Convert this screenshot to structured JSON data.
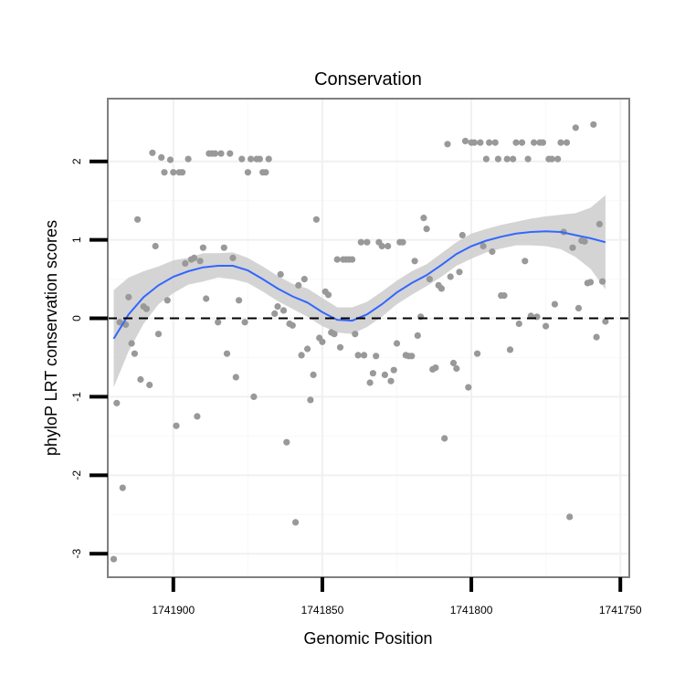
{
  "chart_data": {
    "type": "scatter",
    "title": "Conservation",
    "xlabel": "Genomic Position",
    "ylabel": "phyloP LRT conservation scores",
    "x_reversed": true,
    "xlim": [
      1741922,
      1741747
    ],
    "ylim": [
      -3.3,
      2.8
    ],
    "x_ticks": [
      1741900,
      1741850,
      1741800,
      1741750
    ],
    "y_ticks": [
      -3,
      -2,
      -1,
      0,
      1,
      2
    ],
    "x_tick_labels": [
      "1741900",
      "1741850",
      "1741800",
      "1741750"
    ],
    "y_tick_labels": [
      "-3",
      "-2",
      "-1",
      "0",
      "1",
      "2"
    ],
    "reference_line": {
      "y": 0,
      "style": "dashed",
      "color": "#000000"
    },
    "colors": {
      "points": "#999999",
      "smooth": "#3366FF",
      "ribbon": "#CCCCCC",
      "panel_border": "#7F7F7F",
      "grid_major": "#F0F0F0",
      "grid_minor": "#F8F8F8"
    },
    "points": [
      {
        "x": 1741920.0,
        "y": -3.07
      },
      {
        "x": 1741919.0,
        "y": -1.08
      },
      {
        "x": 1741918.0,
        "y": -0.05
      },
      {
        "x": 1741917.0,
        "y": -2.16
      },
      {
        "x": 1741916.0,
        "y": -0.08
      },
      {
        "x": 1741915.0,
        "y": 0.27
      },
      {
        "x": 1741914.0,
        "y": -0.32
      },
      {
        "x": 1741913.0,
        "y": -0.45
      },
      {
        "x": 1741912.0,
        "y": 1.26
      },
      {
        "x": 1741911.0,
        "y": -0.78
      },
      {
        "x": 1741910.0,
        "y": 0.15
      },
      {
        "x": 1741909.0,
        "y": 0.12
      },
      {
        "x": 1741908.0,
        "y": -0.85
      },
      {
        "x": 1741907.0,
        "y": 2.11
      },
      {
        "x": 1741906.0,
        "y": 0.92
      },
      {
        "x": 1741905.0,
        "y": -0.2
      },
      {
        "x": 1741904.0,
        "y": 2.05
      },
      {
        "x": 1741903.0,
        "y": 1.86
      },
      {
        "x": 1741902.0,
        "y": 0.23
      },
      {
        "x": 1741901.0,
        "y": 2.02
      },
      {
        "x": 1741900.0,
        "y": 1.86
      },
      {
        "x": 1741899.0,
        "y": -1.37
      },
      {
        "x": 1741898.0,
        "y": 1.86
      },
      {
        "x": 1741897.0,
        "y": 1.86
      },
      {
        "x": 1741896.0,
        "y": 0.7
      },
      {
        "x": 1741895.0,
        "y": 2.03
      },
      {
        "x": 1741894.0,
        "y": 0.75
      },
      {
        "x": 1741893.0,
        "y": 0.77
      },
      {
        "x": 1741892.0,
        "y": -1.25
      },
      {
        "x": 1741891.0,
        "y": 0.73
      },
      {
        "x": 1741890.0,
        "y": 0.9
      },
      {
        "x": 1741889.0,
        "y": 0.25
      },
      {
        "x": 1741888.0,
        "y": 2.1
      },
      {
        "x": 1741887.0,
        "y": 2.1
      },
      {
        "x": 1741886.0,
        "y": 2.1
      },
      {
        "x": 1741885.0,
        "y": -0.05
      },
      {
        "x": 1741884.0,
        "y": 2.1
      },
      {
        "x": 1741883.0,
        "y": 0.9
      },
      {
        "x": 1741882.0,
        "y": -0.45
      },
      {
        "x": 1741881.0,
        "y": 2.1
      },
      {
        "x": 1741880.0,
        "y": 0.77
      },
      {
        "x": 1741879.0,
        "y": -0.75
      },
      {
        "x": 1741878.0,
        "y": 0.23
      },
      {
        "x": 1741877.0,
        "y": 2.03
      },
      {
        "x": 1741876.0,
        "y": -0.05
      },
      {
        "x": 1741875.0,
        "y": 1.86
      },
      {
        "x": 1741874.0,
        "y": 2.03
      },
      {
        "x": 1741873.0,
        "y": -1.0
      },
      {
        "x": 1741872.0,
        "y": 2.03
      },
      {
        "x": 1741871.0,
        "y": 2.03
      },
      {
        "x": 1741870.0,
        "y": 1.86
      },
      {
        "x": 1741869.0,
        "y": 1.86
      },
      {
        "x": 1741868.0,
        "y": 2.03
      },
      {
        "x": 1741866.0,
        "y": 0.06
      },
      {
        "x": 1741865.0,
        "y": 0.15
      },
      {
        "x": 1741864.0,
        "y": 0.56
      },
      {
        "x": 1741863.0,
        "y": 0.1
      },
      {
        "x": 1741862.0,
        "y": -1.58
      },
      {
        "x": 1741861.0,
        "y": -0.07
      },
      {
        "x": 1741860.0,
        "y": -0.09
      },
      {
        "x": 1741859.0,
        "y": -2.6
      },
      {
        "x": 1741858.0,
        "y": 0.42
      },
      {
        "x": 1741857.0,
        "y": -0.47
      },
      {
        "x": 1741856.0,
        "y": 0.5
      },
      {
        "x": 1741855.0,
        "y": -0.39
      },
      {
        "x": 1741854.0,
        "y": -1.04
      },
      {
        "x": 1741853.0,
        "y": -0.72
      },
      {
        "x": 1741852.0,
        "y": 1.26
      },
      {
        "x": 1741851.0,
        "y": -0.25
      },
      {
        "x": 1741850.0,
        "y": -0.3
      },
      {
        "x": 1741849.0,
        "y": 0.34
      },
      {
        "x": 1741848.0,
        "y": 0.3
      },
      {
        "x": 1741847.0,
        "y": -0.18
      },
      {
        "x": 1741846.0,
        "y": -0.2
      },
      {
        "x": 1741845.0,
        "y": 0.75
      },
      {
        "x": 1741844.0,
        "y": -0.37
      },
      {
        "x": 1741843.0,
        "y": 0.75
      },
      {
        "x": 1741842.0,
        "y": 0.75
      },
      {
        "x": 1741841.0,
        "y": 0.75
      },
      {
        "x": 1741840.0,
        "y": 0.75
      },
      {
        "x": 1741839.0,
        "y": -0.2
      },
      {
        "x": 1741838.0,
        "y": -0.47
      },
      {
        "x": 1741837.0,
        "y": 0.97
      },
      {
        "x": 1741836.0,
        "y": -0.47
      },
      {
        "x": 1741835.0,
        "y": 0.97
      },
      {
        "x": 1741834.0,
        "y": -0.82
      },
      {
        "x": 1741833.0,
        "y": -0.7
      },
      {
        "x": 1741832.0,
        "y": -0.48
      },
      {
        "x": 1741831.0,
        "y": 0.97
      },
      {
        "x": 1741830.0,
        "y": 0.92
      },
      {
        "x": 1741829.0,
        "y": -0.72
      },
      {
        "x": 1741828.0,
        "y": 0.92
      },
      {
        "x": 1741827.0,
        "y": -0.8
      },
      {
        "x": 1741826.0,
        "y": -0.66
      },
      {
        "x": 1741825.0,
        "y": -0.32
      },
      {
        "x": 1741824.0,
        "y": 0.97
      },
      {
        "x": 1741823.0,
        "y": 0.97
      },
      {
        "x": 1741822.0,
        "y": -0.47
      },
      {
        "x": 1741821.0,
        "y": -0.48
      },
      {
        "x": 1741820.0,
        "y": -0.48
      },
      {
        "x": 1741819.0,
        "y": 0.73
      },
      {
        "x": 1741818.0,
        "y": -0.22
      },
      {
        "x": 1741817.0,
        "y": 0.02
      },
      {
        "x": 1741816.0,
        "y": 1.28
      },
      {
        "x": 1741815.0,
        "y": 1.14
      },
      {
        "x": 1741814.0,
        "y": 0.5
      },
      {
        "x": 1741813.0,
        "y": -0.65
      },
      {
        "x": 1741812.0,
        "y": -0.63
      },
      {
        "x": 1741811.0,
        "y": 0.42
      },
      {
        "x": 1741810.0,
        "y": 0.38
      },
      {
        "x": 1741809.0,
        "y": -1.53
      },
      {
        "x": 1741808.0,
        "y": 2.22
      },
      {
        "x": 1741807.0,
        "y": 0.53
      },
      {
        "x": 1741806.0,
        "y": -0.57
      },
      {
        "x": 1741805.0,
        "y": -0.64
      },
      {
        "x": 1741804.0,
        "y": 0.59
      },
      {
        "x": 1741803.0,
        "y": 1.06
      },
      {
        "x": 1741802.0,
        "y": 2.26
      },
      {
        "x": 1741801.0,
        "y": -0.88
      },
      {
        "x": 1741800.0,
        "y": 2.24
      },
      {
        "x": 1741799.0,
        "y": 2.24
      },
      {
        "x": 1741798.0,
        "y": -0.45
      },
      {
        "x": 1741797.0,
        "y": 2.24
      },
      {
        "x": 1741796.0,
        "y": 0.92
      },
      {
        "x": 1741795.0,
        "y": 2.03
      },
      {
        "x": 1741794.0,
        "y": 2.24
      },
      {
        "x": 1741793.0,
        "y": 0.85
      },
      {
        "x": 1741792.0,
        "y": 2.24
      },
      {
        "x": 1741791.0,
        "y": 2.03
      },
      {
        "x": 1741790.0,
        "y": 0.29
      },
      {
        "x": 1741789.0,
        "y": 0.29
      },
      {
        "x": 1741788.0,
        "y": 2.03
      },
      {
        "x": 1741787.0,
        "y": -0.4
      },
      {
        "x": 1741786.0,
        "y": 2.03
      },
      {
        "x": 1741785.0,
        "y": 2.24
      },
      {
        "x": 1741784.0,
        "y": -0.07
      },
      {
        "x": 1741783.0,
        "y": 2.24
      },
      {
        "x": 1741782.0,
        "y": 0.73
      },
      {
        "x": 1741781.0,
        "y": 2.03
      },
      {
        "x": 1741780.0,
        "y": 0.03
      },
      {
        "x": 1741779.0,
        "y": 2.24
      },
      {
        "x": 1741778.0,
        "y": 0.02
      },
      {
        "x": 1741777.0,
        "y": 2.24
      },
      {
        "x": 1741776.0,
        "y": 2.24
      },
      {
        "x": 1741775.0,
        "y": -0.1
      },
      {
        "x": 1741774.0,
        "y": 2.03
      },
      {
        "x": 1741773.0,
        "y": 2.03
      },
      {
        "x": 1741772.0,
        "y": 0.18
      },
      {
        "x": 1741771.0,
        "y": 2.03
      },
      {
        "x": 1741770.0,
        "y": 2.24
      },
      {
        "x": 1741769.0,
        "y": 1.1
      },
      {
        "x": 1741768.0,
        "y": 2.24
      },
      {
        "x": 1741767.0,
        "y": -2.53
      },
      {
        "x": 1741766.0,
        "y": 0.9
      },
      {
        "x": 1741765.0,
        "y": 2.43
      },
      {
        "x": 1741764.0,
        "y": 0.13
      },
      {
        "x": 1741763.0,
        "y": 0.99
      },
      {
        "x": 1741762.0,
        "y": 0.98
      },
      {
        "x": 1741761.0,
        "y": 0.45
      },
      {
        "x": 1741760.0,
        "y": 0.46
      },
      {
        "x": 1741759.0,
        "y": 2.47
      },
      {
        "x": 1741758.0,
        "y": -0.24
      },
      {
        "x": 1741757.0,
        "y": 1.2
      },
      {
        "x": 1741756.0,
        "y": 0.47
      },
      {
        "x": 1741755.0,
        "y": -0.04
      }
    ],
    "smooth": {
      "x": [
        1741920,
        1741915,
        1741910,
        1741905,
        1741900,
        1741895,
        1741890,
        1741885,
        1741880,
        1741875,
        1741870,
        1741865,
        1741860,
        1741855,
        1741850,
        1741845,
        1741840,
        1741835,
        1741830,
        1741825,
        1741820,
        1741815,
        1741810,
        1741805,
        1741800,
        1741795,
        1741790,
        1741785,
        1741780,
        1741775,
        1741770,
        1741765,
        1741760,
        1741755
      ],
      "y": [
        -0.26,
        0.05,
        0.27,
        0.42,
        0.53,
        0.6,
        0.65,
        0.67,
        0.67,
        0.61,
        0.5,
        0.38,
        0.28,
        0.2,
        0.08,
        -0.02,
        -0.03,
        0.05,
        0.18,
        0.33,
        0.45,
        0.55,
        0.68,
        0.82,
        0.92,
        0.99,
        1.04,
        1.08,
        1.1,
        1.11,
        1.1,
        1.06,
        1.02,
        0.97
      ],
      "lower": [
        -0.88,
        -0.42,
        -0.07,
        0.18,
        0.32,
        0.43,
        0.47,
        0.52,
        0.5,
        0.45,
        0.34,
        0.22,
        0.12,
        0.02,
        -0.1,
        -0.18,
        -0.2,
        -0.11,
        0.02,
        0.18,
        0.3,
        0.41,
        0.53,
        0.67,
        0.76,
        0.84,
        0.89,
        0.93,
        0.93,
        0.92,
        0.88,
        0.78,
        0.63,
        0.37
      ],
      "upper": [
        0.36,
        0.52,
        0.6,
        0.66,
        0.74,
        0.77,
        0.83,
        0.83,
        0.84,
        0.77,
        0.66,
        0.54,
        0.44,
        0.38,
        0.26,
        0.14,
        0.14,
        0.21,
        0.34,
        0.48,
        0.6,
        0.69,
        0.83,
        0.97,
        1.08,
        1.14,
        1.19,
        1.23,
        1.27,
        1.3,
        1.32,
        1.34,
        1.41,
        1.57
      ]
    }
  }
}
